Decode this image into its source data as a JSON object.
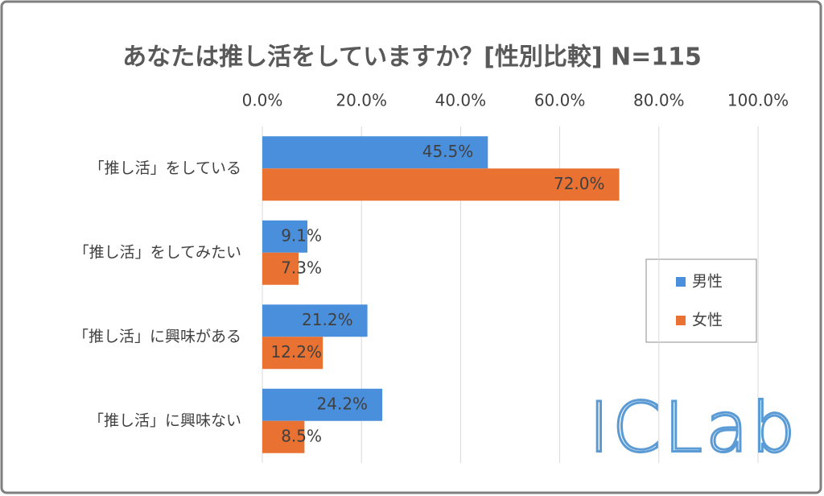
{
  "chart_data": {
    "type": "bar",
    "orientation": "horizontal",
    "title": "あなたは推し活をしていますか？[性別比較] N=115",
    "categories": [
      "「推し活」をしている",
      "「推し活」をしてみたい",
      "「推し活」に興味がある",
      "「推し活」に興味ない"
    ],
    "series": [
      {
        "name": "男性",
        "color": "#4a8fdb",
        "values": [
          45.5,
          9.1,
          21.2,
          24.2
        ],
        "value_labels": [
          "45.5%",
          "9.1%",
          "21.2%",
          "24.2%"
        ]
      },
      {
        "name": "女性",
        "color": "#e97132",
        "values": [
          72.0,
          7.3,
          12.2,
          8.5
        ],
        "value_labels": [
          "72.0%",
          "7.3%",
          "12.2%",
          "8.5%"
        ]
      }
    ],
    "xlim": [
      0,
      100
    ],
    "xticks": [
      {
        "value": 0,
        "label": "0.0%"
      },
      {
        "value": 20,
        "label": "20.0%"
      },
      {
        "value": 40,
        "label": "40.0%"
      },
      {
        "value": 60,
        "label": "60.0%"
      },
      {
        "value": 80,
        "label": "80.0%"
      },
      {
        "value": 100,
        "label": "100.0%"
      }
    ],
    "grid": true,
    "legend": "right",
    "watermark": "ICLab"
  }
}
